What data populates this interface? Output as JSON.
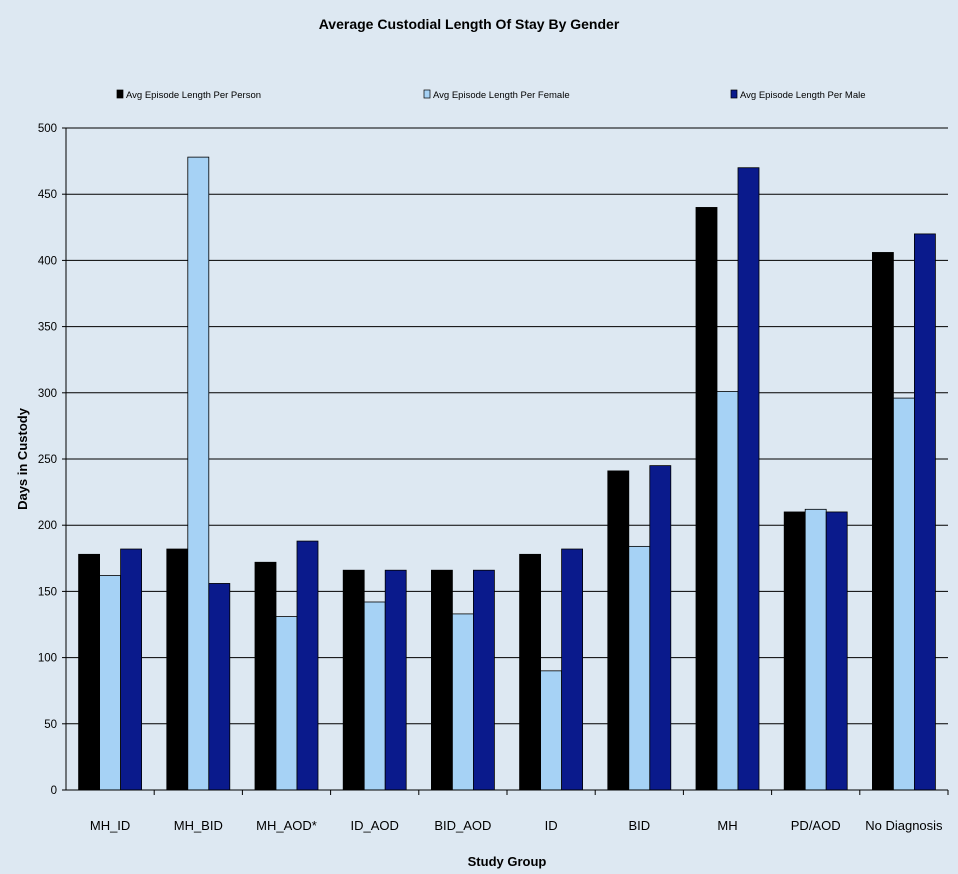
{
  "chart_data": {
    "type": "bar",
    "title": "Average Custodial Length Of Stay By Gender",
    "xlabel": "Study Group",
    "ylabel": "Days in Custody",
    "ylim": [
      0,
      500
    ],
    "yticks": [
      0,
      50,
      100,
      150,
      200,
      250,
      300,
      350,
      400,
      450,
      500
    ],
    "grid": true,
    "legend_position": "top",
    "categories": [
      "MH_ID",
      "MH_BID",
      "MH_AOD*",
      "ID_AOD",
      "BID_AOD",
      "ID",
      "BID",
      "MH",
      "PD/AOD",
      "No Diagnosis"
    ],
    "series": [
      {
        "name": "Avg Episode Length Per Person",
        "color": "#000000",
        "values": [
          178,
          182,
          172,
          166,
          166,
          178,
          241,
          440,
          210,
          406
        ]
      },
      {
        "name": "Avg Episode Length Per Female",
        "color": "#a6d2f5",
        "values": [
          162,
          478,
          131,
          142,
          133,
          90,
          184,
          301,
          212,
          296
        ]
      },
      {
        "name": "Avg Episode Length Per Male",
        "color": "#0a1a8c",
        "values": [
          182,
          156,
          188,
          166,
          166,
          182,
          245,
          470,
          210,
          420
        ]
      }
    ]
  }
}
